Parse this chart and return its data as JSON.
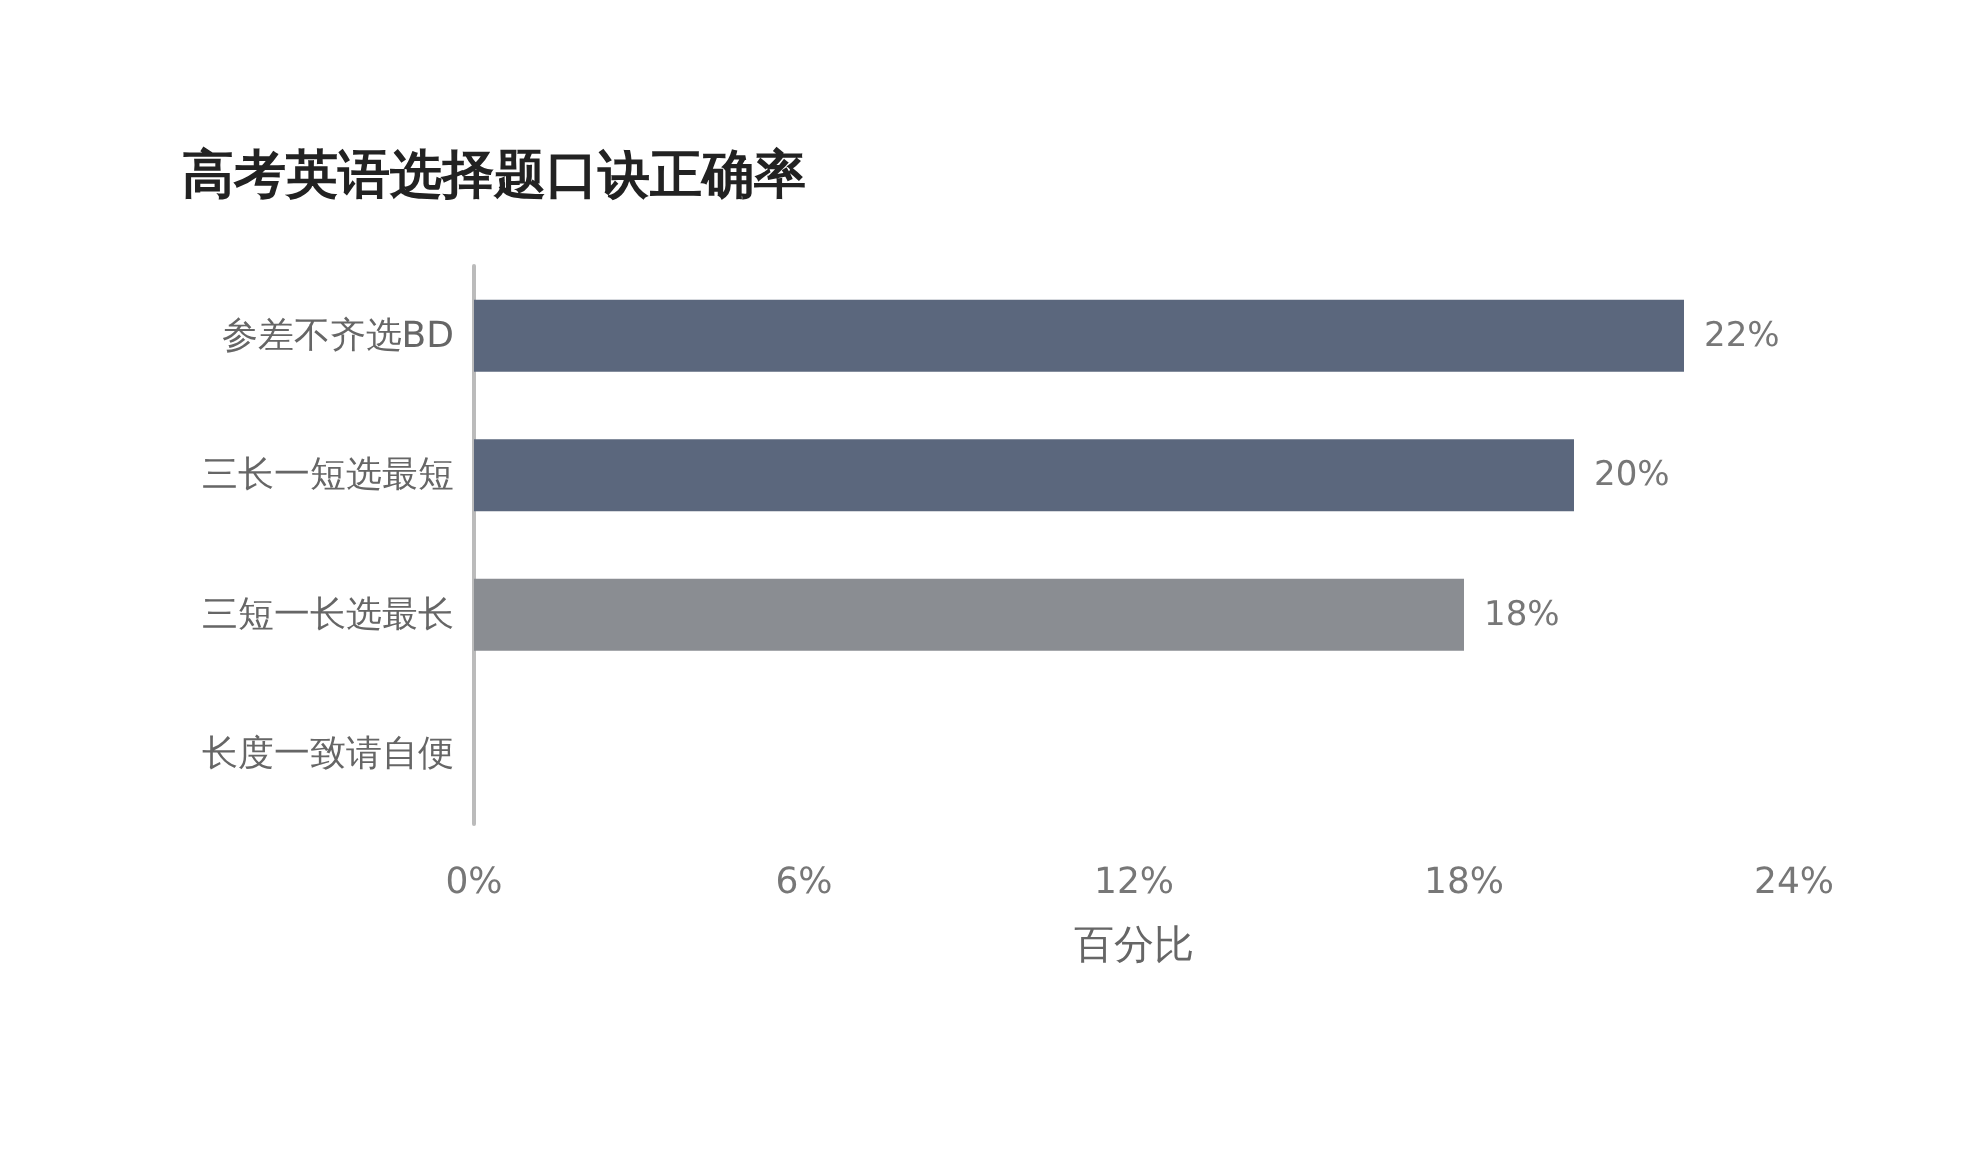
{
  "chart_data": {
    "type": "bar",
    "orientation": "horizontal",
    "title": "高考英语选择题口诀正确率",
    "xlabel": "百分比",
    "categories": [
      "参差不齐选BD",
      "三长一短选最短",
      "三短一长选最长",
      "长度一致请自便"
    ],
    "values": [
      22,
      20,
      18,
      null
    ],
    "colors": [
      "#5b677d",
      "#5b677d",
      "#8a8d92",
      "#8a8d92"
    ],
    "value_labels": [
      "22%",
      "20%",
      "18%",
      null
    ],
    "xlim": [
      0,
      24
    ],
    "xticks": [
      {
        "value": 0,
        "label": "0%"
      },
      {
        "value": 6,
        "label": "6%"
      },
      {
        "value": 12,
        "label": "12%"
      },
      {
        "value": 18,
        "label": "18%"
      },
      {
        "value": 24,
        "label": "24%"
      }
    ],
    "grid": false
  }
}
